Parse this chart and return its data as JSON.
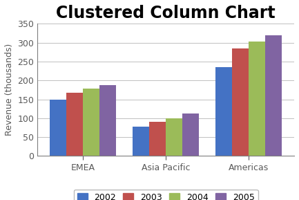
{
  "title": "Clustered Column Chart",
  "categories": [
    "EMEA",
    "Asia Pacific",
    "Americas"
  ],
  "series": {
    "2002": [
      150,
      78,
      235
    ],
    "2003": [
      168,
      90,
      285
    ],
    "2004": [
      179,
      100,
      302
    ],
    "2005": [
      188,
      112,
      320
    ]
  },
  "series_labels": [
    "2002",
    "2003",
    "2004",
    "2005"
  ],
  "bar_colors": [
    "#4472C4",
    "#C0504D",
    "#9BBB59",
    "#8064A2"
  ],
  "ylabel": "Revenue (thousands)",
  "ylim": [
    0,
    350
  ],
  "yticks": [
    0,
    50,
    100,
    150,
    200,
    250,
    300,
    350
  ],
  "background_color": "#FFFFFF",
  "plot_bg_color": "#FFFFFF",
  "title_fontsize": 17,
  "axis_fontsize": 9,
  "legend_fontsize": 9,
  "bar_width": 0.2,
  "spine_color": "#7F7F7F",
  "tick_color": "#595959",
  "grid_color": "#C0C0C0"
}
